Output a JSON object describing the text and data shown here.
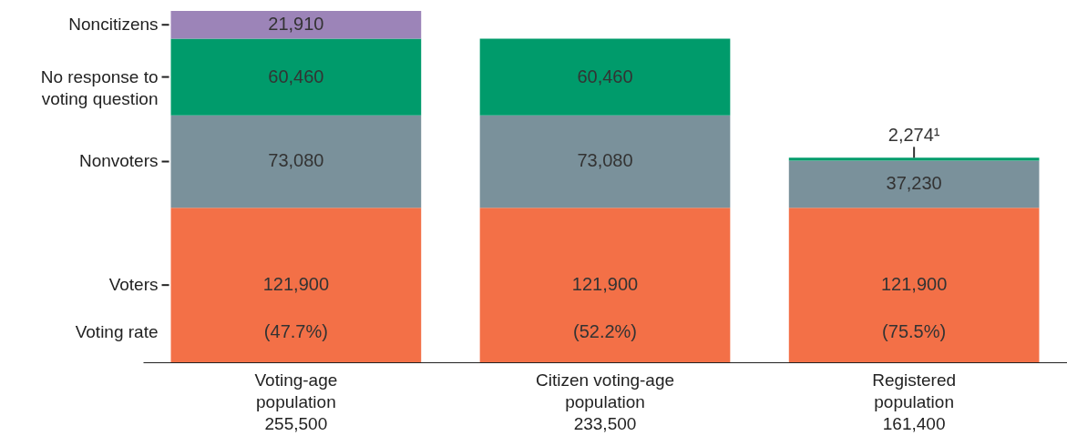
{
  "chart_data": {
    "type": "bar",
    "stacked": true,
    "categories": [
      "Voting-age\npopulation\n255,500",
      "Citizen voting-age\npopulation\n233,500",
      "Registered\npopulation\n161,400"
    ],
    "series": [
      {
        "name": "Voters",
        "color": "#f37047",
        "values": [
          121900,
          121900,
          121900
        ],
        "value_labels": [
          "121,900",
          "121,900",
          "121,900"
        ]
      },
      {
        "name": "Nonvoters",
        "color": "#7a919b",
        "values": [
          73080,
          73080,
          37230
        ],
        "value_labels": [
          "73,080",
          "73,080",
          "37,230"
        ]
      },
      {
        "name": "No response to voting question",
        "color": "#009b6b",
        "values": [
          60460,
          60460,
          2274
        ],
        "value_labels": [
          "60,460",
          "60,460",
          "2,274¹"
        ]
      },
      {
        "name": "Noncitizens",
        "color": "#9c84b8",
        "values": [
          21910,
          null,
          null
        ],
        "value_labels": [
          "21,910",
          null,
          null
        ]
      }
    ],
    "annotations": [
      "Voting rate",
      "(47.7%)",
      "(52.2%)",
      "(75.5%)"
    ]
  }
}
